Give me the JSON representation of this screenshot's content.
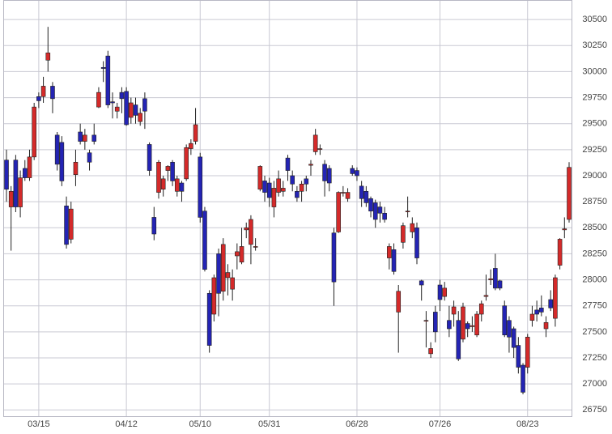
{
  "chart_data": {
    "type": "candlestick",
    "categories": [
      null,
      null,
      null,
      null,
      null,
      null,
      null,
      "03/15",
      null,
      null,
      null,
      null,
      null,
      null,
      null,
      null,
      null,
      null,
      null,
      null,
      null,
      null,
      null,
      null,
      null,
      null,
      "04/12",
      null,
      null,
      null,
      null,
      null,
      null,
      null,
      null,
      null,
      null,
      null,
      null,
      null,
      null,
      null,
      "05/10",
      null,
      null,
      null,
      null,
      null,
      null,
      null,
      null,
      null,
      null,
      null,
      null,
      null,
      null,
      "05/31",
      null,
      null,
      null,
      null,
      null,
      null,
      null,
      null,
      null,
      null,
      null,
      null,
      null,
      null,
      null,
      null,
      null,
      null,
      "06/28",
      null,
      null,
      null,
      null,
      null,
      null,
      null,
      null,
      null,
      null,
      null,
      null,
      null,
      null,
      null,
      null,
      null,
      "07/26",
      null,
      null,
      null,
      null,
      null,
      null,
      null,
      null,
      null,
      null,
      null,
      null,
      null,
      null,
      null,
      null,
      null,
      null,
      "08/23",
      null,
      null,
      null,
      null,
      null,
      null,
      null,
      null,
      null
    ],
    "open": [
      29150,
      28700,
      29150,
      28700,
      29070,
      28980,
      29180,
      29760,
      29760,
      30110,
      29860,
      29390,
      29320,
      28710,
      28390,
      29010,
      29420,
      29330,
      29220,
      29390,
      29660,
      30040,
      30150,
      29710,
      29620,
      29800,
      29810,
      29560,
      29680,
      29520,
      29740,
      29300,
      28600,
      28840,
      28870,
      29050,
      29130,
      28850,
      28930,
      28970,
      29260,
      29330,
      29180,
      28660,
      27870,
      27670,
      28250,
      27890,
      28020,
      27910,
      28230,
      28170,
      28480,
      28340,
      28320,
      28870,
      28950,
      28930,
      28700,
      28840,
      28850,
      29170,
      29000,
      28850,
      28850,
      28970,
      29100,
      29230,
      29260,
      29110,
      29070,
      28450,
      28460,
      28840,
      28780,
      29070,
      29050,
      28900,
      28850,
      28780,
      28740,
      28700,
      28640,
      28210,
      28290,
      27690,
      28360,
      28660,
      28460,
      28500,
      27990,
      27610,
      27290,
      27690,
      27950,
      27840,
      27610,
      27670,
      27610,
      27430,
      27580,
      27550,
      27470,
      27670,
      27840,
      28000,
      28110,
      27990,
      27750,
      27610,
      27530,
      27370,
      27180,
      27160,
      27610,
      27710,
      27730,
      27530,
      27810,
      27630,
      28140,
      28480,
      28580
    ],
    "high": [
      29250,
      28900,
      29200,
      29050,
      29150,
      29250,
      29700,
      29800,
      29950,
      30430,
      29900,
      29420,
      29380,
      28800,
      28750,
      29250,
      29500,
      29450,
      29250,
      29500,
      29850,
      30100,
      30200,
      29800,
      29700,
      29850,
      29850,
      29750,
      29750,
      29650,
      29800,
      29320,
      28700,
      29150,
      29000,
      29100,
      29150,
      29000,
      28950,
      29300,
      29350,
      29650,
      29220,
      28700,
      27900,
      28050,
      28300,
      28400,
      28150,
      28100,
      28350,
      28500,
      28550,
      28620,
      28400,
      29100,
      29000,
      28980,
      28950,
      29050,
      28950,
      29200,
      29050,
      28900,
      28950,
      29000,
      29150,
      29450,
      29300,
      29150,
      29100,
      28500,
      28850,
      28900,
      28880,
      29100,
      29080,
      28950,
      28900,
      28800,
      28770,
      28750,
      28700,
      28350,
      28350,
      27950,
      28550,
      28800,
      28600,
      28550,
      28000,
      27700,
      27400,
      27750,
      28000,
      27980,
      27750,
      27800,
      27700,
      27780,
      27600,
      27650,
      27700,
      27800,
      28050,
      28100,
      28250,
      28000,
      27800,
      27650,
      27550,
      27450,
      27200,
      27480,
      27750,
      27800,
      27850,
      27650,
      27900,
      28050,
      28400,
      28600,
      29130
    ],
    "low": [
      28750,
      28280,
      28650,
      28600,
      28950,
      28950,
      29150,
      29650,
      29700,
      30000,
      29600,
      29050,
      28900,
      28300,
      28350,
      28900,
      29300,
      29250,
      29050,
      29300,
      29650,
      29900,
      29650,
      29550,
      29550,
      29600,
      29480,
      29500,
      29500,
      29480,
      29450,
      29000,
      28380,
      28780,
      28800,
      28950,
      28900,
      28800,
      28750,
      28950,
      29200,
      29300,
      28550,
      28080,
      27300,
      27600,
      27650,
      27800,
      27850,
      27800,
      28100,
      28150,
      28400,
      28150,
      28280,
      28850,
      28750,
      28700,
      28600,
      28800,
      28800,
      28950,
      28850,
      28750,
      28750,
      28850,
      29000,
      29200,
      29200,
      28800,
      28850,
      27750,
      28450,
      28800,
      28750,
      29000,
      28950,
      28700,
      28700,
      28600,
      28500,
      28550,
      28550,
      28100,
      28050,
      27300,
      28300,
      28600,
      28400,
      28150,
      27800,
      27350,
      27250,
      27400,
      27700,
      27800,
      27450,
      27550,
      27220,
      27400,
      27450,
      27500,
      27450,
      27600,
      27800,
      27950,
      27900,
      27900,
      27450,
      27300,
      27250,
      27100,
      26900,
      27100,
      27550,
      27600,
      27650,
      27450,
      27700,
      27550,
      28100,
      28400,
      28550
    ],
    "close": [
      28870,
      28850,
      28700,
      28980,
      28980,
      29180,
      29660,
      29720,
      29860,
      30180,
      29740,
      29110,
      28950,
      28340,
      28680,
      29130,
      29330,
      29390,
      29130,
      29330,
      29800,
      30030,
      29680,
      29700,
      29660,
      29740,
      29490,
      29700,
      29580,
      29600,
      29620,
      29050,
      28440,
      29130,
      28970,
      29090,
      28950,
      28970,
      28850,
      29270,
      29310,
      29490,
      28600,
      28100,
      27370,
      28020,
      27870,
      28340,
      28070,
      28020,
      28270,
      28320,
      28500,
      28580,
      28320,
      29090,
      28840,
      28790,
      28880,
      28970,
      28880,
      29050,
      28920,
      28790,
      28920,
      28920,
      29110,
      29390,
      29260,
      28950,
      28930,
      27980,
      28840,
      28840,
      28840,
      29020,
      29000,
      28780,
      28740,
      28660,
      28580,
      28640,
      28580,
      28320,
      28080,
      27890,
      28520,
      28660,
      28540,
      28210,
      27950,
      27610,
      27340,
      27500,
      27810,
      27920,
      27530,
      27740,
      27240,
      27740,
      27530,
      27560,
      27670,
      27770,
      27850,
      28010,
      27920,
      27920,
      27470,
      27450,
      27350,
      27160,
      26920,
      27450,
      27670,
      27670,
      27690,
      27590,
      27730,
      28020,
      28390,
      28490,
      29080
    ],
    "up_color": "#d42a2a",
    "down_color": "#2424b4",
    "ylim": [
      26690,
      30680
    ],
    "yticks": [
      26750,
      27000,
      27250,
      27500,
      27750,
      28000,
      28250,
      28500,
      28750,
      29000,
      29250,
      29500,
      29750,
      30000,
      30250,
      30500
    ],
    "grid": true
  }
}
